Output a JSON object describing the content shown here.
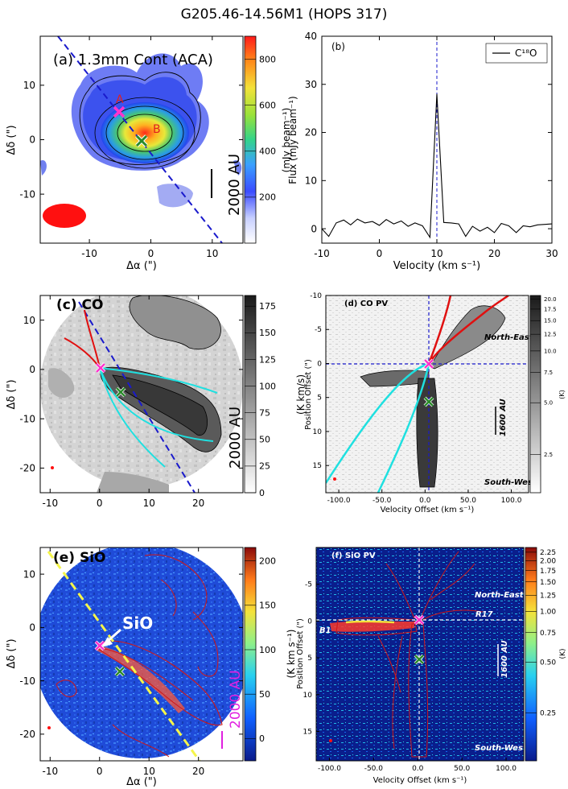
{
  "figure_title": "G205.46-14.56M1  (HOPS 317)",
  "colors": {
    "axis": "#000000",
    "dashed_blue": "#1a1acc",
    "red_curve": "#e01010",
    "cyan_curve": "#1fe0e0",
    "marker_source": "#2a8a2a",
    "marker_a": "#ff33cc",
    "label_red": "#e02020",
    "magenta_bar": "#e020e0",
    "yellow_dash": "#f5f54a"
  },
  "chart_data": [
    {
      "panel": "a",
      "type": "heatmap",
      "label": "(a) 1.3mm Cont (ACA)",
      "xlabel": "Δα (\")",
      "ylabel": "Δδ (\")",
      "xlim": [
        -18,
        15
      ],
      "ylim": [
        -19,
        19
      ],
      "xticks": [
        -10,
        0,
        10
      ],
      "yticks": [
        -10,
        0,
        10
      ],
      "colorbar_label": "(mJy beam⁻¹)",
      "colorbar_ticks": [
        200,
        400,
        600,
        800
      ],
      "colorbar_range": [
        0,
        900
      ],
      "markers": [
        {
          "label": "A",
          "x": -4,
          "y": 4.8
        },
        {
          "label": "B",
          "x": 0,
          "y": 0
        }
      ],
      "scale_bar": "2000 AU",
      "beam": {
        "x": -13,
        "y": -13.5
      }
    },
    {
      "panel": "b",
      "type": "line",
      "label": "(b)",
      "legend": [
        "C¹⁸O"
      ],
      "xlabel": "Velocity  (km s⁻¹)",
      "ylabel": "Flux (mJy beam⁻¹)",
      "xlim": [
        -10,
        30
      ],
      "ylim": [
        -3,
        40
      ],
      "xticks": [
        -10,
        0,
        10,
        20,
        30
      ],
      "yticks": [
        0,
        10,
        20,
        30,
        40
      ],
      "vline": 10,
      "x": [
        -10,
        -8.8,
        -7.5,
        -6.2,
        -5,
        -3.8,
        -2.5,
        -1.2,
        0,
        1.2,
        2.5,
        3.8,
        5,
        6.2,
        7.5,
        8.8,
        10,
        11.2,
        12.5,
        13.8,
        15,
        16.2,
        17.5,
        18.8,
        20,
        21.2,
        22.5,
        23.8,
        25,
        26.2,
        27.5,
        28.8,
        30
      ],
      "y": [
        0,
        -1.6,
        1.2,
        1.8,
        0.8,
        2,
        1.2,
        1.5,
        0.7,
        1.9,
        1.0,
        1.6,
        0.5,
        1.2,
        0.6,
        -1.8,
        28,
        1.3,
        1.2,
        1.0,
        -1.6,
        0.5,
        -0.5,
        0.3,
        -0.8,
        1.1,
        0.6,
        -0.8,
        0.6,
        0.4,
        0.8,
        0.9,
        1.0
      ]
    },
    {
      "panel": "c",
      "type": "heatmap",
      "label": "(c) CO",
      "xlabel": "",
      "ylabel": "Δδ (\")",
      "xlim": [
        -12,
        29
      ],
      "ylim": [
        -25,
        15
      ],
      "xticks": [
        -10,
        0,
        10,
        20
      ],
      "yticks": [
        -20,
        -10,
        0,
        10
      ],
      "colorbar_label": "(K km/s)",
      "colorbar_ticks": [
        0,
        25,
        50,
        75,
        100,
        125,
        150,
        175
      ],
      "scale_bar": "2000 AU"
    },
    {
      "panel": "d",
      "type": "heatmap",
      "label": "(d) CO PV",
      "xlabel": "Velocity Offset (km s⁻¹)",
      "ylabel": "Position Offset (\")",
      "xlim": [
        -115,
        120
      ],
      "ylim": [
        19,
        -10
      ],
      "xticks_labels": [
        "-100.0",
        "-50.0",
        "0.0",
        "50.0",
        "100.0"
      ],
      "xticks": [
        -100,
        -50,
        0,
        50,
        100
      ],
      "yticks": [
        -10,
        -5,
        0,
        5,
        10,
        15
      ],
      "colorbar_label": "(K)",
      "colorbar_ticks": [
        2.5,
        5.0,
        7.5,
        10.0,
        12.5,
        15.0,
        17.5,
        20.0
      ],
      "annotations": [
        "North-East",
        "South-West"
      ],
      "scale_bar": "1600 AU"
    },
    {
      "panel": "e",
      "type": "heatmap",
      "label": "(e) SiO",
      "annotation": "SiO",
      "xlabel": "Δα (\")",
      "ylabel": "Δδ (\")",
      "xlim": [
        -12,
        29
      ],
      "ylim": [
        -25,
        15
      ],
      "xticks": [
        -10,
        0,
        10,
        20
      ],
      "yticks": [
        -20,
        -10,
        0,
        10
      ],
      "colorbar_label": "(K km s⁻¹)",
      "colorbar_ticks": [
        0,
        50,
        100,
        150,
        200
      ],
      "scale_bar": "2000 AU"
    },
    {
      "panel": "f",
      "type": "heatmap",
      "label": "(f) SiO PV",
      "xlabel": "Velocity Offset (km s⁻¹)",
      "ylabel": "Position Offset (\")",
      "xlim": [
        -115,
        120
      ],
      "ylim": [
        19,
        -10
      ],
      "xticks_labels": [
        "-100.0",
        "-50.0",
        "0.0",
        "50.0",
        "100.0"
      ],
      "xticks": [
        -100,
        -50,
        0,
        50,
        100
      ],
      "yticks": [
        -5,
        0,
        5,
        10,
        15
      ],
      "colorbar_label": "(K)",
      "colorbar_ticks_labels": [
        "0.25",
        "0.50",
        "0.75",
        "1.00",
        "1.25",
        "1.50",
        "1.75",
        "2.00",
        "2.25"
      ],
      "colorbar_ticks": [
        0.25,
        0.5,
        0.75,
        1.0,
        1.25,
        1.5,
        1.75,
        2.0,
        2.25
      ],
      "annotations": [
        "North-East",
        "South-West",
        "R17",
        "B1"
      ],
      "scale_bar": "1600 AU"
    }
  ]
}
